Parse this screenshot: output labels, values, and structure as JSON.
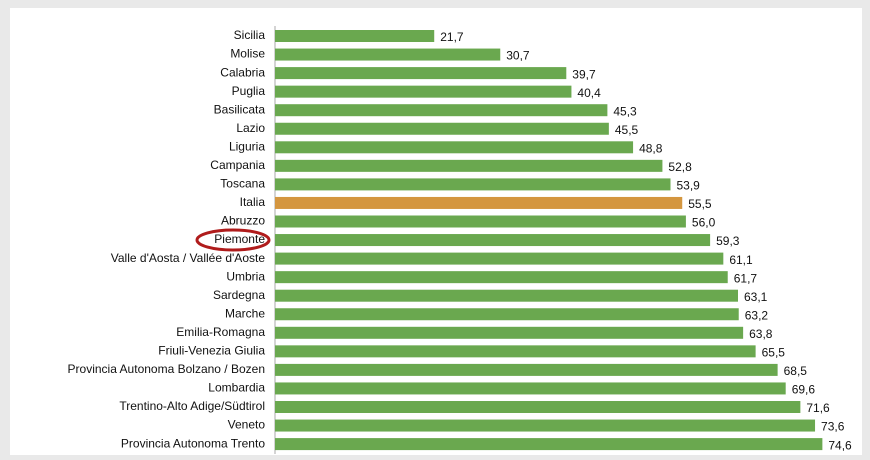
{
  "chart_data": {
    "type": "hbar",
    "categories": [
      "Sicilia",
      "Molise",
      "Calabria",
      "Puglia",
      "Basilicata",
      "Lazio",
      "Liguria",
      "Campania",
      "Toscana",
      "Italia",
      "Abruzzo",
      "Piemonte",
      "Valle d'Aosta / Vallée d'Aoste",
      "Umbria",
      "Sardegna",
      "Marche",
      "Emilia-Romagna",
      "Friuli-Venezia Giulia",
      "Provincia Autonoma Bolzano / Bozen",
      "Lombardia",
      "Trentino-Alto Adige/Südtirol",
      "Veneto",
      "Provincia Autonoma Trento"
    ],
    "values": [
      21.7,
      30.7,
      39.7,
      40.4,
      45.3,
      45.5,
      48.8,
      52.8,
      53.9,
      55.5,
      56.0,
      59.3,
      61.1,
      61.7,
      63.1,
      63.2,
      63.8,
      65.5,
      68.5,
      69.6,
      71.6,
      73.6,
      74.6
    ],
    "value_labels": [
      "21,7",
      "30,7",
      "39,7",
      "40,4",
      "45,3",
      "45,5",
      "48,8",
      "52,8",
      "53,9",
      "55,5",
      "56,0",
      "59,3",
      "61,1",
      "61,7",
      "63,1",
      "63,2",
      "63,8",
      "65,5",
      "68,5",
      "69,6",
      "71,6",
      "73,6",
      "74,6"
    ],
    "colors": [
      "#6aa84f",
      "#6aa84f",
      "#6aa84f",
      "#6aa84f",
      "#6aa84f",
      "#6aa84f",
      "#6aa84f",
      "#6aa84f",
      "#6aa84f",
      "#d4963f",
      "#6aa84f",
      "#6aa84f",
      "#6aa84f",
      "#6aa84f",
      "#6aa84f",
      "#6aa84f",
      "#6aa84f",
      "#6aa84f",
      "#6aa84f",
      "#6aa84f",
      "#6aa84f",
      "#6aa84f",
      "#6aa84f"
    ],
    "xlim": [
      0,
      80
    ]
  }
}
